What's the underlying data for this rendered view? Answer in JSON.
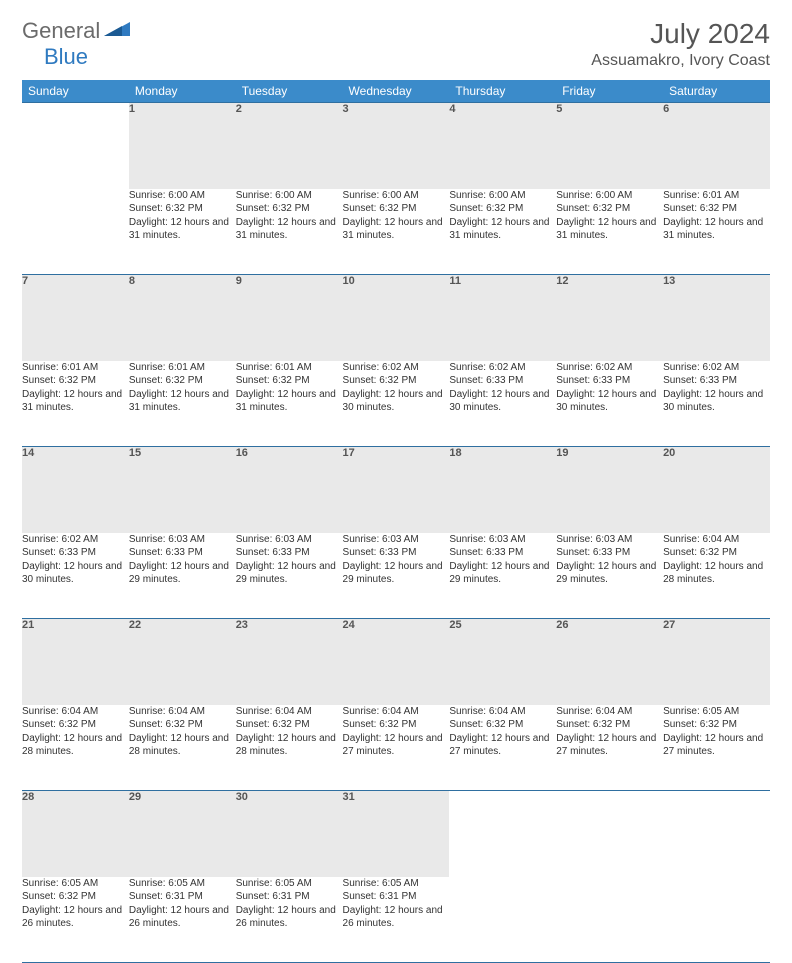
{
  "brand": {
    "word1": "General",
    "word2": "Blue"
  },
  "title": "July 2024",
  "location": "Assuamakro, Ivory Coast",
  "colors": {
    "header_bg": "#3b8bca",
    "header_text": "#ffffff",
    "daynum_bg": "#e9e9e9",
    "border": "#2f6fa0",
    "title_color": "#555555",
    "text_color": "#333333"
  },
  "day_headers": [
    "Sunday",
    "Monday",
    "Tuesday",
    "Wednesday",
    "Thursday",
    "Friday",
    "Saturday"
  ],
  "weeks": [
    {
      "nums": [
        "",
        "1",
        "2",
        "3",
        "4",
        "5",
        "6"
      ],
      "cells": [
        null,
        {
          "sunrise": "6:00 AM",
          "sunset": "6:32 PM",
          "daylight": "12 hours and 31 minutes."
        },
        {
          "sunrise": "6:00 AM",
          "sunset": "6:32 PM",
          "daylight": "12 hours and 31 minutes."
        },
        {
          "sunrise": "6:00 AM",
          "sunset": "6:32 PM",
          "daylight": "12 hours and 31 minutes."
        },
        {
          "sunrise": "6:00 AM",
          "sunset": "6:32 PM",
          "daylight": "12 hours and 31 minutes."
        },
        {
          "sunrise": "6:00 AM",
          "sunset": "6:32 PM",
          "daylight": "12 hours and 31 minutes."
        },
        {
          "sunrise": "6:01 AM",
          "sunset": "6:32 PM",
          "daylight": "12 hours and 31 minutes."
        }
      ]
    },
    {
      "nums": [
        "7",
        "8",
        "9",
        "10",
        "11",
        "12",
        "13"
      ],
      "cells": [
        {
          "sunrise": "6:01 AM",
          "sunset": "6:32 PM",
          "daylight": "12 hours and 31 minutes."
        },
        {
          "sunrise": "6:01 AM",
          "sunset": "6:32 PM",
          "daylight": "12 hours and 31 minutes."
        },
        {
          "sunrise": "6:01 AM",
          "sunset": "6:32 PM",
          "daylight": "12 hours and 31 minutes."
        },
        {
          "sunrise": "6:02 AM",
          "sunset": "6:32 PM",
          "daylight": "12 hours and 30 minutes."
        },
        {
          "sunrise": "6:02 AM",
          "sunset": "6:33 PM",
          "daylight": "12 hours and 30 minutes."
        },
        {
          "sunrise": "6:02 AM",
          "sunset": "6:33 PM",
          "daylight": "12 hours and 30 minutes."
        },
        {
          "sunrise": "6:02 AM",
          "sunset": "6:33 PM",
          "daylight": "12 hours and 30 minutes."
        }
      ]
    },
    {
      "nums": [
        "14",
        "15",
        "16",
        "17",
        "18",
        "19",
        "20"
      ],
      "cells": [
        {
          "sunrise": "6:02 AM",
          "sunset": "6:33 PM",
          "daylight": "12 hours and 30 minutes."
        },
        {
          "sunrise": "6:03 AM",
          "sunset": "6:33 PM",
          "daylight": "12 hours and 29 minutes."
        },
        {
          "sunrise": "6:03 AM",
          "sunset": "6:33 PM",
          "daylight": "12 hours and 29 minutes."
        },
        {
          "sunrise": "6:03 AM",
          "sunset": "6:33 PM",
          "daylight": "12 hours and 29 minutes."
        },
        {
          "sunrise": "6:03 AM",
          "sunset": "6:33 PM",
          "daylight": "12 hours and 29 minutes."
        },
        {
          "sunrise": "6:03 AM",
          "sunset": "6:33 PM",
          "daylight": "12 hours and 29 minutes."
        },
        {
          "sunrise": "6:04 AM",
          "sunset": "6:32 PM",
          "daylight": "12 hours and 28 minutes."
        }
      ]
    },
    {
      "nums": [
        "21",
        "22",
        "23",
        "24",
        "25",
        "26",
        "27"
      ],
      "cells": [
        {
          "sunrise": "6:04 AM",
          "sunset": "6:32 PM",
          "daylight": "12 hours and 28 minutes."
        },
        {
          "sunrise": "6:04 AM",
          "sunset": "6:32 PM",
          "daylight": "12 hours and 28 minutes."
        },
        {
          "sunrise": "6:04 AM",
          "sunset": "6:32 PM",
          "daylight": "12 hours and 28 minutes."
        },
        {
          "sunrise": "6:04 AM",
          "sunset": "6:32 PM",
          "daylight": "12 hours and 27 minutes."
        },
        {
          "sunrise": "6:04 AM",
          "sunset": "6:32 PM",
          "daylight": "12 hours and 27 minutes."
        },
        {
          "sunrise": "6:04 AM",
          "sunset": "6:32 PM",
          "daylight": "12 hours and 27 minutes."
        },
        {
          "sunrise": "6:05 AM",
          "sunset": "6:32 PM",
          "daylight": "12 hours and 27 minutes."
        }
      ]
    },
    {
      "nums": [
        "28",
        "29",
        "30",
        "31",
        "",
        "",
        ""
      ],
      "cells": [
        {
          "sunrise": "6:05 AM",
          "sunset": "6:32 PM",
          "daylight": "12 hours and 26 minutes."
        },
        {
          "sunrise": "6:05 AM",
          "sunset": "6:31 PM",
          "daylight": "12 hours and 26 minutes."
        },
        {
          "sunrise": "6:05 AM",
          "sunset": "6:31 PM",
          "daylight": "12 hours and 26 minutes."
        },
        {
          "sunrise": "6:05 AM",
          "sunset": "6:31 PM",
          "daylight": "12 hours and 26 minutes."
        },
        null,
        null,
        null
      ]
    }
  ],
  "labels": {
    "sunrise": "Sunrise:",
    "sunset": "Sunset:",
    "daylight": "Daylight:"
  }
}
